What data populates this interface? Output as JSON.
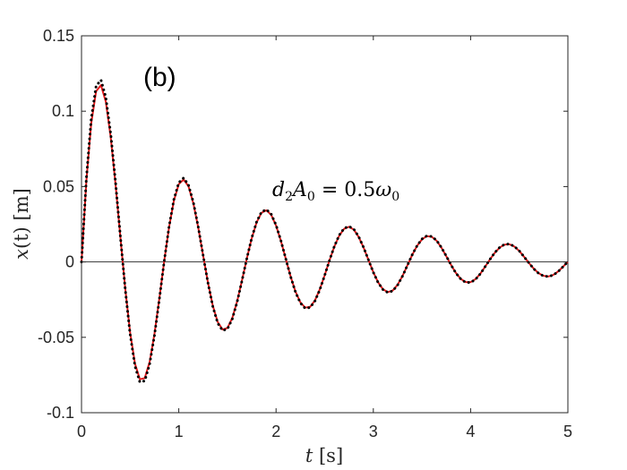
{
  "chart_data": {
    "type": "line",
    "title": "",
    "panel_label": "(b)",
    "annotation": {
      "text": "d2A0 = 0.5ω0",
      "parts": {
        "d": "d",
        "d_sub": "2",
        "a": "A",
        "a_sub": "0",
        "eq": " = 0.5",
        "w": "ω",
        "w_sub": "0"
      }
    },
    "xlabel": {
      "var": "t",
      "unit": " [s]"
    },
    "ylabel": {
      "var": "x",
      "arg": "(t)",
      "unit": " [m]"
    },
    "xlim": [
      0,
      5
    ],
    "ylim": [
      -0.1,
      0.15
    ],
    "xticks": [
      0,
      1,
      2,
      3,
      4,
      5
    ],
    "xtick_labels": [
      "0",
      "1",
      "2",
      "3",
      "4",
      "5"
    ],
    "yticks": [
      -0.1,
      -0.05,
      0,
      0.05,
      0.1,
      0.15
    ],
    "ytick_labels": [
      "-0.1",
      "-0.05",
      "0",
      "0.05",
      "0.1",
      "0.15"
    ],
    "grid": false,
    "zero_line": true,
    "series": [
      {
        "style": "solid",
        "color": "#e41a1c",
        "x": [
          0,
          0.05,
          0.1,
          0.15,
          0.2,
          0.25,
          0.3,
          0.35,
          0.4,
          0.45,
          0.5,
          0.55,
          0.6,
          0.65,
          0.7,
          0.75,
          0.8,
          0.85,
          0.9,
          0.95,
          1.0,
          1.05,
          1.1,
          1.15,
          1.2,
          1.25,
          1.3,
          1.35,
          1.4,
          1.45,
          1.5,
          1.55,
          1.6,
          1.65,
          1.7,
          1.75,
          1.8,
          1.85,
          1.9,
          1.95,
          2.0,
          2.05,
          2.1,
          2.15,
          2.2,
          2.25,
          2.3,
          2.35,
          2.4,
          2.45,
          2.5,
          2.55,
          2.6,
          2.65,
          2.7,
          2.75,
          2.8,
          2.85,
          2.9,
          2.95,
          3.0,
          3.05,
          3.1,
          3.15,
          3.2,
          3.25,
          3.3,
          3.35,
          3.4,
          3.45,
          3.5,
          3.55,
          3.6,
          3.65,
          3.7,
          3.75,
          3.8,
          3.85,
          3.9,
          3.95,
          4.0,
          4.05,
          4.1,
          4.15,
          4.2,
          4.25,
          4.3,
          4.35,
          4.4,
          4.45,
          4.5,
          4.55,
          4.6,
          4.65,
          4.7,
          4.75,
          4.8,
          4.85,
          4.9,
          4.95,
          5.0
        ],
        "y": [
          0.0,
          0.0536,
          0.0919,
          0.1132,
          0.1173,
          0.1062,
          0.0828,
          0.0513,
          0.0162,
          -0.0179,
          -0.0469,
          -0.0675,
          -0.0778,
          -0.0771,
          -0.0664,
          -0.0477,
          -0.0243,
          0.0004,
          0.023,
          0.0407,
          0.0516,
          0.0547,
          0.0501,
          0.0388,
          0.0228,
          0.0044,
          -0.0137,
          -0.0291,
          -0.0398,
          -0.0448,
          -0.0438,
          -0.0372,
          -0.0261,
          -0.0122,
          0.0024,
          0.0157,
          0.0262,
          0.0326,
          0.0343,
          0.0312,
          0.0241,
          0.0139,
          0.0021,
          -0.0097,
          -0.0197,
          -0.0268,
          -0.0303,
          -0.0298,
          -0.0255,
          -0.0181,
          -0.0088,
          0.0012,
          0.0103,
          0.0175,
          0.022,
          0.0233,
          0.0214,
          0.0165,
          0.0095,
          0.0013,
          -0.0068,
          -0.0136,
          -0.0182,
          -0.02,
          -0.0189,
          -0.0151,
          -0.0093,
          -0.0023,
          0.0047,
          0.0107,
          0.015,
          0.0171,
          0.0167,
          0.0141,
          0.0095,
          0.0038,
          -0.0021,
          -0.0074,
          -0.0113,
          -0.0134,
          -0.0134,
          -0.0114,
          -0.0078,
          -0.0031,
          0.0018,
          0.0062,
          0.0096,
          0.0115,
          0.0117,
          0.0102,
          0.0073,
          0.0034,
          -0.0007,
          -0.0045,
          -0.0075,
          -0.0092,
          -0.0096,
          -0.0086,
          -0.0063,
          -0.0032,
          0.0002
        ]
      },
      {
        "style": "dotted",
        "color": "#000000",
        "x": [
          0,
          0.05,
          0.1,
          0.15,
          0.2,
          0.25,
          0.3,
          0.35,
          0.4,
          0.45,
          0.5,
          0.55,
          0.6,
          0.65,
          0.7,
          0.75,
          0.8,
          0.85,
          0.9,
          0.95,
          1.0,
          1.05,
          1.1,
          1.15,
          1.2,
          1.25,
          1.3,
          1.35,
          1.4,
          1.45,
          1.5,
          1.55,
          1.6,
          1.65,
          1.7,
          1.75,
          1.8,
          1.85,
          1.9,
          1.95,
          2.0,
          2.05,
          2.1,
          2.15,
          2.2,
          2.25,
          2.3,
          2.35,
          2.4,
          2.45,
          2.5,
          2.55,
          2.6,
          2.65,
          2.7,
          2.75,
          2.8,
          2.85,
          2.9,
          2.95,
          3.0,
          3.05,
          3.1,
          3.15,
          3.2,
          3.25,
          3.3,
          3.35,
          3.4,
          3.45,
          3.5,
          3.55,
          3.6,
          3.65,
          3.7,
          3.75,
          3.8,
          3.85,
          3.9,
          3.95,
          4.0,
          4.05,
          4.1,
          4.15,
          4.2,
          4.25,
          4.3,
          4.35,
          4.4,
          4.45,
          4.5,
          4.55,
          4.6,
          4.65,
          4.7,
          4.75,
          4.8,
          4.85,
          4.9,
          4.95,
          5.0
        ],
        "y": [
          0.0,
          0.0554,
          0.095,
          0.1167,
          0.1207,
          0.1093,
          0.0852,
          0.0527,
          0.0167,
          -0.0184,
          -0.0481,
          -0.0692,
          -0.0797,
          -0.0789,
          -0.0679,
          -0.0488,
          -0.0248,
          0.0004,
          0.0235,
          0.0415,
          0.0526,
          0.0557,
          0.051,
          0.0395,
          0.0232,
          0.0045,
          -0.0139,
          -0.0296,
          -0.0405,
          -0.0455,
          -0.0445,
          -0.0378,
          -0.0265,
          -0.0124,
          0.0024,
          0.0159,
          0.0266,
          0.0331,
          0.0348,
          0.0317,
          0.0245,
          0.0141,
          0.0021,
          -0.0098,
          -0.02,
          -0.0272,
          -0.0308,
          -0.0302,
          -0.0259,
          -0.0184,
          -0.0089,
          0.0012,
          0.0105,
          0.0178,
          0.0223,
          0.0236,
          0.0217,
          0.0167,
          0.0096,
          0.0013,
          -0.0069,
          -0.0138,
          -0.0184,
          -0.0203,
          -0.0192,
          -0.0153,
          -0.0094,
          -0.0023,
          0.0048,
          0.0108,
          0.0152,
          0.0173,
          0.0169,
          0.0143,
          0.0096,
          0.0039,
          -0.0021,
          -0.0075,
          -0.0114,
          -0.0136,
          -0.0136,
          -0.0116,
          -0.0079,
          -0.0031,
          0.0018,
          0.0063,
          0.0097,
          0.0117,
          0.0119,
          0.0103,
          0.0074,
          0.0034,
          -0.0007,
          -0.0046,
          -0.0076,
          -0.0093,
          -0.0097,
          -0.0087,
          -0.0064,
          -0.0032,
          0.0002
        ]
      }
    ]
  }
}
